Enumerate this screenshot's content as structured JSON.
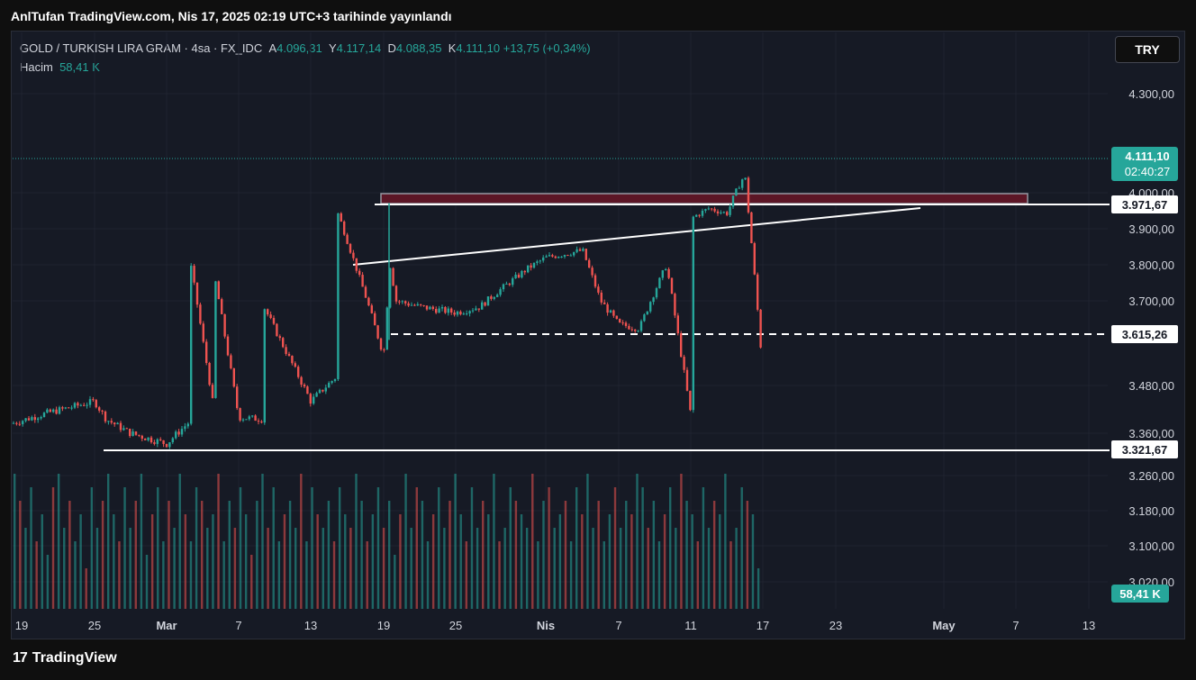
{
  "publish_line": "AnlTufan TradingView.com, Nis 17, 2025 02:19 UTC+3 tarihinde yayınlandı",
  "legend": {
    "symbol": "GOLD / TURKISH LIRA GRAM · 4sa · FX_IDC",
    "open_label": "A",
    "open": "4.096,31",
    "high_label": "Y",
    "high": "4.117,14",
    "low_label": "D",
    "low": "4.088,35",
    "close_label": "K",
    "close": "4.111,10",
    "change": "+13,75 (+0,34%)",
    "volume_label": "Hacim",
    "volume": "58,41 K"
  },
  "currency_button": "TRY",
  "brand": {
    "logo": "17",
    "name": "TradingView"
  },
  "colors": {
    "up": "#26a69a",
    "down": "#ef5350",
    "zone": "#5c1626",
    "line": "#ffffff"
  },
  "chart_data": {
    "type": "candlestick",
    "y_ticks": [
      "4.300,00",
      "4.000,00",
      "3.900,00",
      "3.800,00",
      "3.700,00",
      "3.480,00",
      "3.360,00",
      "3.260,00",
      "3.180,00",
      "3.100,00",
      "3.020,00"
    ],
    "x_ticks": [
      "19",
      "25",
      "Mar",
      "7",
      "13",
      "19",
      "25",
      "Nis",
      "7",
      "11",
      "17",
      "23",
      "May",
      "7",
      "13"
    ],
    "last_price": "4.111,10",
    "countdown": "02:40:27",
    "price_labels": [
      "3.971,67",
      "3.615,26",
      "3.321,67"
    ],
    "volume_label": "58,41 K",
    "price_path": [
      [
        "19",
        3385
      ],
      [
        "21",
        3410
      ],
      [
        "23",
        3430
      ],
      [
        "25",
        3440
      ],
      [
        "26",
        3395
      ],
      [
        "28",
        3360
      ],
      [
        "Mar",
        3335
      ],
      [
        "3",
        3390
      ],
      [
        "5",
        3410
      ],
      [
        "7",
        3400
      ],
      [
        "9",
        3395
      ],
      [
        "11",
        3405
      ],
      [
        "13",
        3440
      ],
      [
        "15",
        3500
      ],
      [
        "17",
        3520
      ],
      [
        "19",
        3560
      ],
      [
        "19",
        3800
      ],
      [
        "20",
        3700
      ],
      [
        "22",
        3685
      ],
      [
        "25",
        3670
      ],
      [
        "27",
        3685
      ],
      [
        "29",
        3740
      ],
      [
        "31",
        3790
      ],
      [
        "Nis",
        3820
      ],
      [
        "3",
        3810
      ],
      [
        "4",
        3840
      ],
      [
        "5",
        3770
      ],
      [
        "6",
        3700
      ],
      [
        "7",
        3640
      ],
      [
        "8",
        3630
      ],
      [
        "9",
        3690
      ],
      [
        "10",
        3800
      ],
      [
        "11",
        3930
      ],
      [
        "12",
        3960
      ],
      [
        "13",
        3950
      ],
      [
        "14",
        3945
      ],
      [
        "15",
        3970
      ],
      [
        "16",
        4060
      ],
      [
        "17",
        4111
      ]
    ],
    "volumes": [
      1.0,
      0.8,
      0.6,
      0.9,
      0.5,
      0.7,
      0.4,
      0.9,
      1.0,
      0.6,
      0.8,
      0.5,
      0.7,
      0.3,
      0.9,
      0.6,
      0.8,
      1.0,
      0.7,
      0.5,
      0.9,
      0.6,
      0.8,
      1.0,
      0.4,
      0.7,
      0.9,
      0.5,
      0.8,
      0.6,
      1.0,
      0.7,
      0.5,
      0.9,
      0.8,
      0.6,
      0.7,
      1.0,
      0.5,
      0.8,
      0.6,
      0.9,
      0.7,
      0.4,
      0.8,
      1.0,
      0.6,
      0.9,
      0.5,
      0.7,
      0.8,
      0.6,
      1.0,
      0.5,
      0.9,
      0.7,
      0.6,
      0.8,
      0.5,
      0.9,
      0.7,
      0.6,
      1.0,
      0.8,
      0.5,
      0.7,
      0.9,
      0.6,
      0.8,
      0.4,
      0.7,
      1.0,
      0.6,
      0.9,
      0.8,
      0.5,
      0.7,
      0.9,
      0.6,
      0.8,
      1.0,
      0.7,
      0.5,
      0.9,
      0.6,
      0.8,
      0.7,
      1.0,
      0.5,
      0.6,
      0.9,
      0.8,
      0.7,
      0.6,
      1.0,
      0.5,
      0.8,
      0.9,
      0.6,
      0.7,
      0.8,
      0.5,
      0.9,
      0.7,
      1.0,
      0.6,
      0.8,
      0.5,
      0.7,
      0.9,
      0.6,
      0.8,
      0.7,
      1.0,
      0.9,
      0.6,
      0.8,
      0.5,
      0.7,
      0.9,
      0.6,
      1.0,
      0.8,
      0.7,
      0.5,
      0.9,
      0.6,
      0.8,
      0.7,
      1.0,
      0.5,
      0.6,
      0.9,
      0.8,
      0.7,
      0.3
    ]
  }
}
